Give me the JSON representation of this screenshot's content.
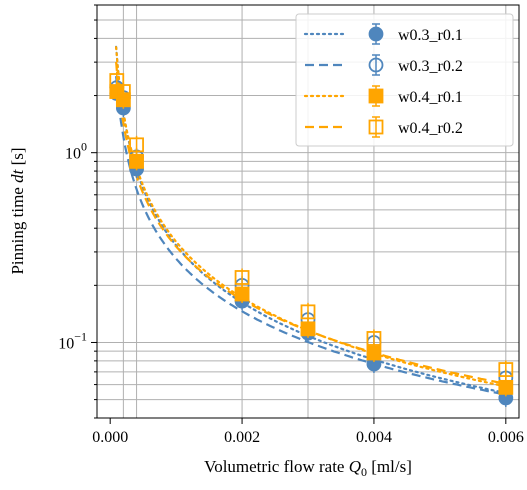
{
  "chart_data": {
    "type": "scatter",
    "xlabel_text": "Volumetric flow rate ",
    "xlabel_sym": "Q",
    "xlabel_sub": "0",
    "xlabel_unit": " [ml/s]",
    "ylabel_text": "Pinning time ",
    "ylabel_sym": "dt",
    "ylabel_unit": " [s]",
    "xlim": [
      -0.0002,
      0.0062
    ],
    "ylim": [
      0.04,
      6.0
    ],
    "yscale": "log",
    "grid": true,
    "legend_position": "top-right",
    "x_ticks": [
      {
        "value": 0.0,
        "label": "0.000"
      },
      {
        "value": 0.002,
        "label": "0.002"
      },
      {
        "value": 0.004,
        "label": "0.004"
      },
      {
        "value": 0.006,
        "label": "0.006"
      }
    ],
    "y_ticks": [
      {
        "value": 1.0,
        "base": "10",
        "exp": "0"
      },
      {
        "value": 0.1,
        "base": "10",
        "exp": "−1"
      }
    ],
    "x": [
      0.0001,
      0.0002,
      0.0004,
      0.002,
      0.003,
      0.004,
      0.006
    ],
    "series": [
      {
        "name": "w0.3_r0.1",
        "color": "#4f86bd",
        "marker": "circle-filled",
        "line": "dotted",
        "values": [
          2.05,
          1.72,
          0.82,
          0.165,
          0.112,
          0.077,
          0.051
        ],
        "fit_k": 0.000325,
        "fit_n": 1.0
      },
      {
        "name": "w0.3_r0.2",
        "color": "#4f86bd",
        "marker": "circle-open",
        "line": "dashed",
        "values": [
          2.2,
          1.95,
          0.95,
          0.2,
          0.132,
          0.1,
          0.065
        ],
        "fit_k": 0.00048,
        "fit_n": 0.92
      },
      {
        "name": "w0.4_r0.1",
        "color": "#ffa500",
        "marker": "square-filled",
        "line": "dotted",
        "values": [
          2.1,
          1.9,
          0.9,
          0.18,
          0.118,
          0.088,
          0.058
        ],
        "fit_k": 0.00039,
        "fit_n": 0.98
      },
      {
        "name": "w0.4_r0.2",
        "color": "#ffa500",
        "marker": "square-open",
        "line": "dashed",
        "values": [
          2.4,
          2.1,
          1.1,
          0.22,
          0.145,
          0.105,
          0.072
        ],
        "fit_k": 0.00052,
        "fit_n": 0.93
      }
    ]
  }
}
